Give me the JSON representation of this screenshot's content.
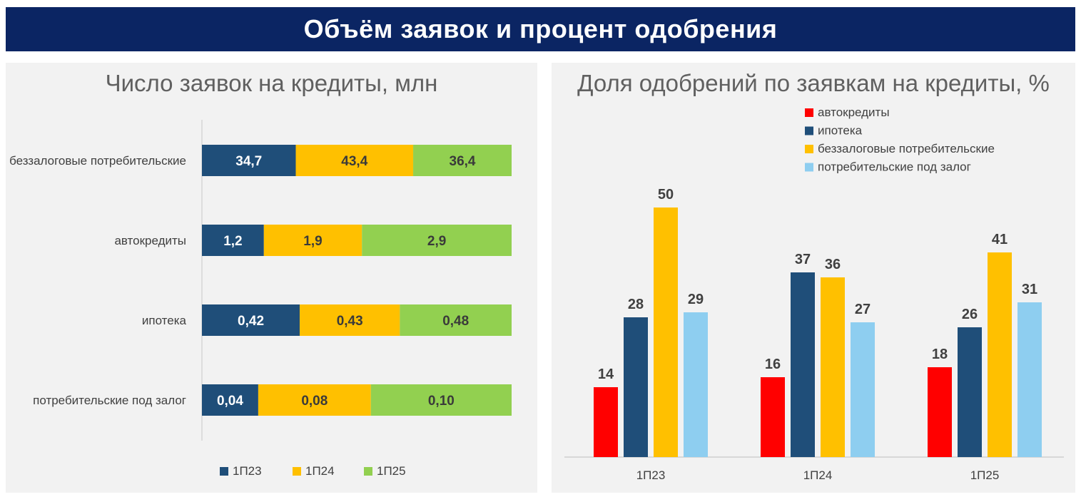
{
  "header": {
    "title": "Объём заявок и процент одобрения"
  },
  "colors": {
    "banner_bg": "#0b2563",
    "p23": "#1f4e79",
    "p24": "#ffc000",
    "p25": "#92d050",
    "avto": "#ff0000",
    "ipoteka": "#1f4e79",
    "bezzalog": "#ffc000",
    "pod_zalog": "#8ecef0"
  },
  "chart_data": [
    {
      "type": "bar",
      "orientation": "horizontal",
      "stacked": true,
      "normalized": true,
      "title": "Число заявок на кредиты, млн",
      "categories": [
        "беззалоговые потребительские",
        "автокредиты",
        "ипотека",
        "потребительские под залог"
      ],
      "series": [
        {
          "name": "1П23",
          "color": "#1f4e79",
          "values": [
            34.7,
            1.2,
            0.42,
            0.04
          ],
          "labels": [
            "34,7",
            "1,2",
            "0,42",
            "0,04"
          ]
        },
        {
          "name": "1П24",
          "color": "#ffc000",
          "values": [
            43.4,
            1.9,
            0.43,
            0.08
          ],
          "labels": [
            "43,4",
            "1,9",
            "0,43",
            "0,08"
          ]
        },
        {
          "name": "1П25",
          "color": "#92d050",
          "values": [
            36.4,
            2.9,
            0.48,
            0.1
          ],
          "labels": [
            "36,4",
            "2,9",
            "0,48",
            "0,10"
          ]
        }
      ],
      "legend": "bottom"
    },
    {
      "type": "bar",
      "orientation": "vertical",
      "title": "Доля одобрений по заявкам на кредиты, %",
      "categories": [
        "1П23",
        "1П24",
        "1П25"
      ],
      "series": [
        {
          "name": "автокредиты",
          "color": "#ff0000",
          "values": [
            14,
            16,
            18
          ]
        },
        {
          "name": "ипотека",
          "color": "#1f4e79",
          "values": [
            28,
            37,
            26
          ]
        },
        {
          "name": "беззалоговые потребительские",
          "color": "#ffc000",
          "values": [
            50,
            36,
            41
          ]
        },
        {
          "name": "потребительские под залог",
          "color": "#8ecef0",
          "values": [
            29,
            27,
            31
          ]
        }
      ],
      "ylim": [
        0,
        50
      ],
      "legend": "top"
    }
  ]
}
